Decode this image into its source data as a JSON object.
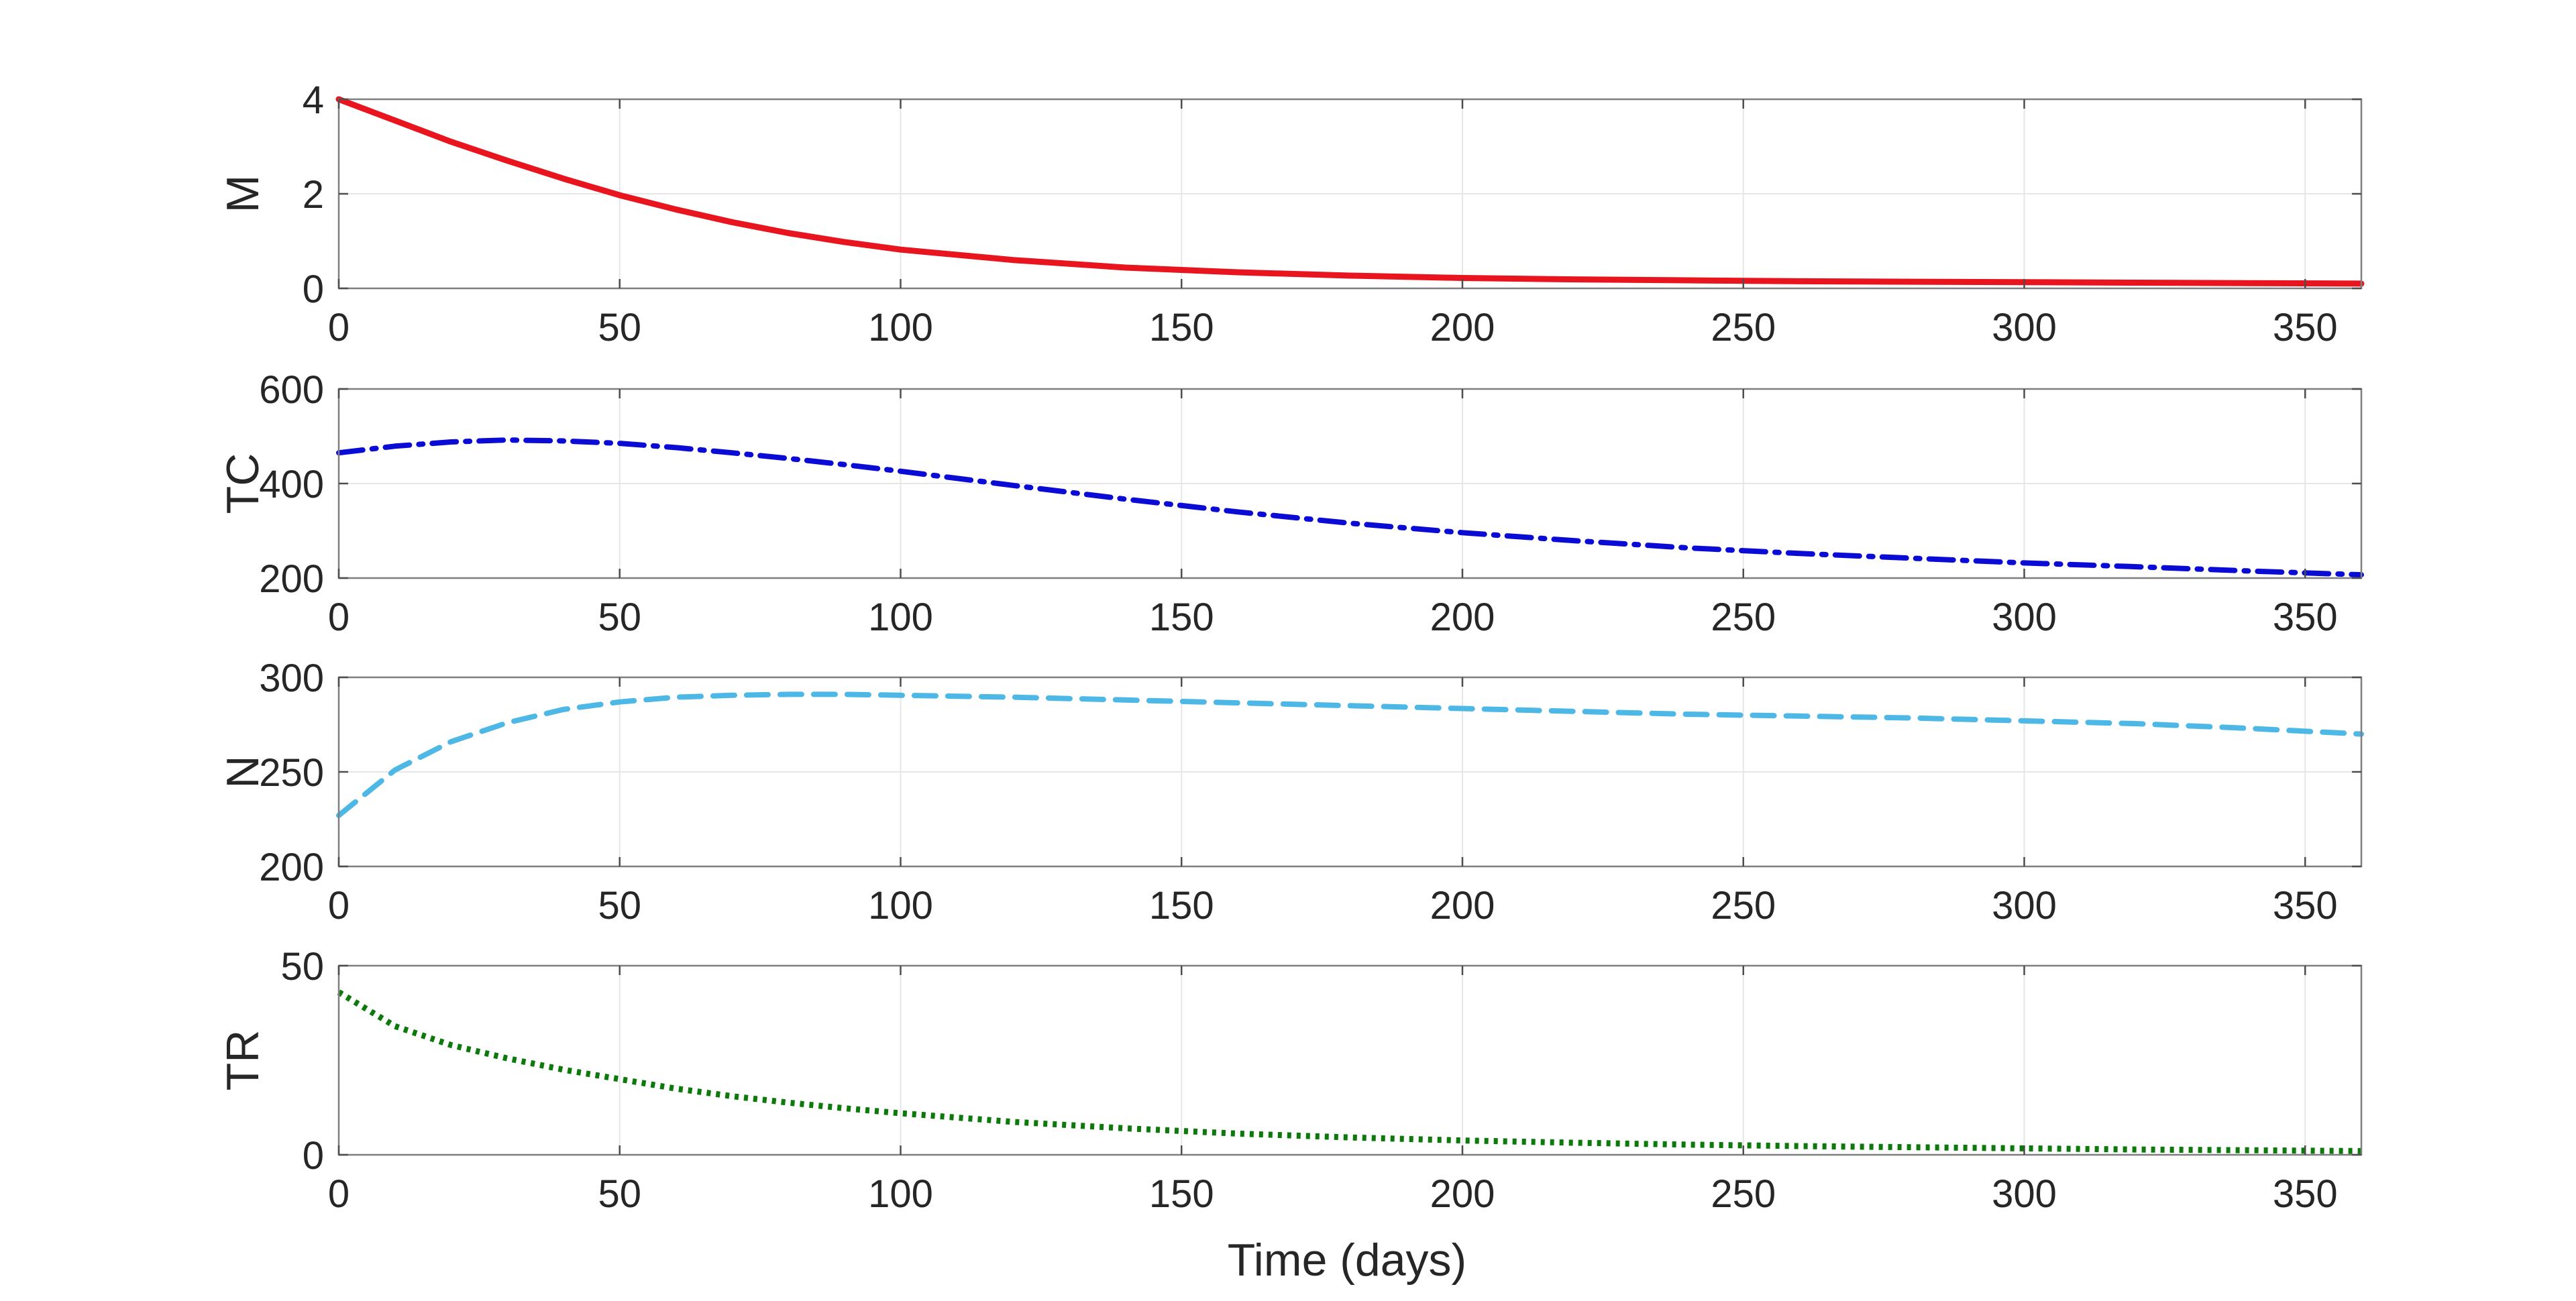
{
  "chart_data": [
    {
      "type": "line",
      "ylabel": "M",
      "xlabel": "",
      "xlim": [
        0,
        360
      ],
      "ylim": [
        0,
        4
      ],
      "xticks": [
        0,
        50,
        100,
        150,
        200,
        250,
        300,
        350
      ],
      "yticks": [
        0,
        2,
        4
      ],
      "grid": true,
      "series": [
        {
          "color": "#e8141e",
          "style": "solid",
          "x": [
            0,
            10,
            20,
            30,
            40,
            50,
            60,
            70,
            80,
            90,
            100,
            120,
            140,
            160,
            180,
            200,
            220,
            240,
            260,
            280,
            300,
            320,
            340,
            360
          ],
          "values": [
            4.0,
            3.55,
            3.1,
            2.7,
            2.32,
            1.97,
            1.67,
            1.4,
            1.17,
            0.98,
            0.82,
            0.6,
            0.44,
            0.34,
            0.27,
            0.22,
            0.19,
            0.17,
            0.15,
            0.14,
            0.13,
            0.12,
            0.11,
            0.1
          ]
        }
      ]
    },
    {
      "type": "line",
      "ylabel": "TC",
      "xlabel": "",
      "xlim": [
        0,
        360
      ],
      "ylim": [
        200,
        600
      ],
      "xticks": [
        0,
        50,
        100,
        150,
        200,
        250,
        300,
        350
      ],
      "yticks": [
        200,
        400,
        600
      ],
      "grid": true,
      "series": [
        {
          "color": "#0b0bd6",
          "style": "dashdot",
          "x": [
            0,
            10,
            20,
            30,
            40,
            50,
            60,
            70,
            80,
            90,
            100,
            120,
            140,
            160,
            180,
            200,
            220,
            240,
            260,
            280,
            300,
            320,
            340,
            360
          ],
          "values": [
            465,
            479,
            488,
            492,
            490,
            485,
            476,
            465,
            453,
            440,
            426,
            396,
            367,
            340,
            316,
            296,
            279,
            264,
            252,
            242,
            232,
            224,
            215,
            207
          ]
        }
      ]
    },
    {
      "type": "line",
      "ylabel": "N",
      "xlabel": "",
      "xlim": [
        0,
        360
      ],
      "ylim": [
        200,
        300
      ],
      "xticks": [
        0,
        50,
        100,
        150,
        200,
        250,
        300,
        350
      ],
      "yticks": [
        200,
        250,
        300
      ],
      "grid": true,
      "series": [
        {
          "color": "#4db8e6",
          "style": "dashed",
          "x": [
            0,
            10,
            20,
            30,
            40,
            50,
            60,
            70,
            80,
            90,
            100,
            120,
            140,
            160,
            180,
            200,
            220,
            240,
            260,
            280,
            300,
            320,
            340,
            360
          ],
          "values": [
            227,
            251,
            266,
            276,
            283,
            287,
            289.5,
            290.5,
            291,
            291,
            290.5,
            289.5,
            288,
            286.5,
            285,
            283.5,
            282,
            280.5,
            279.5,
            278.5,
            277,
            275.5,
            273,
            270
          ]
        }
      ]
    },
    {
      "type": "line",
      "ylabel": "TR",
      "xlabel": "Time (days)",
      "xlim": [
        0,
        360
      ],
      "ylim": [
        0,
        50
      ],
      "xticks": [
        0,
        50,
        100,
        150,
        200,
        250,
        300,
        350
      ],
      "yticks": [
        0,
        50
      ],
      "grid": true,
      "series": [
        {
          "color": "#0b7a0b",
          "style": "dotted",
          "x": [
            0,
            10,
            20,
            30,
            40,
            50,
            60,
            70,
            80,
            90,
            100,
            120,
            140,
            160,
            180,
            200,
            220,
            240,
            260,
            280,
            300,
            320,
            340,
            360
          ],
          "values": [
            43,
            34,
            29,
            25.5,
            22.5,
            20,
            17.5,
            15.5,
            13.8,
            12.3,
            11,
            8.7,
            7,
            5.6,
            4.6,
            3.8,
            3.2,
            2.7,
            2.3,
            2.0,
            1.7,
            1.4,
            1.2,
            1.0
          ]
        }
      ]
    }
  ]
}
